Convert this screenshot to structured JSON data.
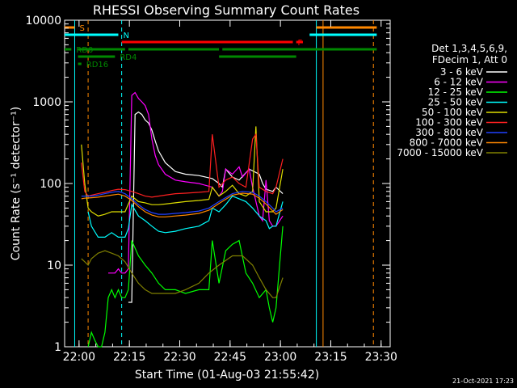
{
  "chart_data": {
    "type": "line",
    "title": "RHESSI Observing Summary Count Rates",
    "xlabel": "Start Time (01-Aug-03 21:55:42)",
    "ylabel": "Count Rate (s⁻¹ detector⁻¹)",
    "y_scale": "log",
    "ylim": [
      1,
      10000
    ],
    "x_tick_labels": [
      "22:00",
      "22:15",
      "22:30",
      "22:45",
      "23:00",
      "23:15",
      "23:30"
    ],
    "y_tick_labels": [
      "1",
      "10",
      "100",
      "1000",
      "10000"
    ],
    "x_unit": "minutes since 21:55:42",
    "xlim": [
      0,
      97
    ],
    "legend": {
      "header": [
        "Det 1,3,4,5,6,9,",
        "FDecim 1, Att 0"
      ],
      "position": "right"
    },
    "series": [
      {
        "name": "3 - 6 keV",
        "color": "#ffffff",
        "x": [
          19,
          20,
          21,
          22,
          23,
          24,
          25,
          26,
          27,
          28,
          30,
          33,
          36,
          40,
          44,
          46,
          47,
          48,
          50,
          52,
          55,
          58,
          59,
          60,
          62,
          63,
          65
        ],
        "y": [
          3.5,
          3.5,
          700,
          750,
          700,
          600,
          550,
          450,
          330,
          250,
          180,
          140,
          130,
          125,
          115,
          100,
          90,
          150,
          120,
          110,
          150,
          130,
          100,
          85,
          80,
          90,
          75
        ]
      },
      {
        "name": "6 - 12 keV",
        "color": "#ff00ff",
        "x": [
          13,
          14,
          15,
          16,
          17,
          18,
          19,
          20,
          21,
          22,
          23,
          24,
          25,
          26,
          27,
          28,
          30,
          33,
          36,
          40,
          44,
          46,
          47,
          48,
          50,
          52,
          53,
          55,
          56,
          58,
          59,
          60,
          61,
          62,
          63,
          65
        ],
        "y": [
          8,
          8,
          8,
          9,
          8,
          8,
          9,
          1200,
          1300,
          1100,
          1000,
          900,
          700,
          350,
          220,
          170,
          130,
          110,
          105,
          100,
          90,
          70,
          80,
          150,
          130,
          160,
          120,
          150,
          90,
          40,
          35,
          110,
          35,
          30,
          30,
          40
        ]
      },
      {
        "name": "12 - 25 keV",
        "color": "#00ff00",
        "x": [
          7,
          8,
          9,
          10,
          11,
          12,
          13,
          14,
          15,
          16,
          17,
          18,
          19,
          20,
          22,
          24,
          26,
          28,
          30,
          33,
          36,
          40,
          43,
          44,
          46,
          48,
          50,
          52,
          54,
          56,
          58,
          60,
          61,
          62,
          63,
          65
        ],
        "y": [
          1,
          1.5,
          1.2,
          1,
          1,
          1.5,
          4,
          5,
          4,
          5,
          4,
          4,
          5,
          20,
          13,
          10,
          8,
          6,
          5,
          5,
          4.5,
          5,
          5,
          20,
          6,
          15,
          18,
          20,
          8,
          6,
          4,
          5,
          3,
          2,
          3,
          30
        ]
      },
      {
        "name": "25 - 50 keV",
        "color": "#00ffff",
        "x": [
          7,
          8,
          10,
          12,
          14,
          16,
          18,
          19,
          20,
          22,
          24,
          26,
          28,
          30,
          33,
          36,
          40,
          43,
          44,
          46,
          48,
          50,
          52,
          54,
          56,
          58,
          60,
          61,
          62,
          63,
          65
        ],
        "y": [
          45,
          30,
          22,
          22,
          25,
          22,
          22,
          28,
          55,
          40,
          35,
          30,
          26,
          25,
          26,
          28,
          30,
          35,
          50,
          45,
          55,
          70,
          65,
          60,
          50,
          40,
          35,
          28,
          30,
          30,
          60
        ]
      },
      {
        "name": "50 - 100 keV",
        "color": "#dddd00",
        "x": [
          5,
          6,
          7,
          8,
          10,
          12,
          14,
          16,
          18,
          20,
          22,
          24,
          26,
          28,
          30,
          33,
          36,
          40,
          43,
          44,
          46,
          48,
          50,
          52,
          54,
          56,
          57,
          58,
          60,
          62,
          63,
          65
        ],
        "y": [
          300,
          100,
          50,
          45,
          40,
          42,
          45,
          45,
          45,
          70,
          60,
          58,
          55,
          55,
          56,
          58,
          60,
          62,
          64,
          90,
          70,
          80,
          95,
          75,
          70,
          80,
          500,
          60,
          45,
          45,
          50,
          150
        ]
      },
      {
        "name": "100 - 300 keV",
        "color": "#ff2020",
        "x": [
          5,
          6,
          7,
          8,
          10,
          12,
          14,
          16,
          18,
          20,
          22,
          24,
          26,
          28,
          30,
          33,
          36,
          40,
          43,
          44,
          46,
          48,
          50,
          52,
          54,
          56,
          57,
          58,
          60,
          62,
          63,
          65
        ],
        "y": [
          180,
          80,
          70,
          72,
          75,
          78,
          82,
          85,
          84,
          80,
          75,
          70,
          68,
          70,
          72,
          75,
          76,
          78,
          80,
          400,
          90,
          110,
          120,
          100,
          90,
          350,
          400,
          90,
          80,
          75,
          90,
          200
        ]
      },
      {
        "name": "300 - 800 keV",
        "color": "#2040ff",
        "x": [
          5,
          6,
          8,
          10,
          12,
          14,
          16,
          18,
          20,
          22,
          24,
          26,
          28,
          30,
          33,
          36,
          40,
          43,
          46,
          50,
          53,
          56,
          58,
          60,
          62,
          63,
          65
        ],
        "y": [
          70,
          70,
          70,
          72,
          75,
          78,
          80,
          75,
          65,
          55,
          48,
          44,
          42,
          42,
          43,
          44,
          46,
          50,
          60,
          75,
          80,
          78,
          70,
          60,
          50,
          45,
          50
        ]
      },
      {
        "name": "800 - 7000 keV",
        "color": "#ff8800",
        "x": [
          5,
          6,
          8,
          10,
          12,
          14,
          16,
          18,
          20,
          22,
          24,
          26,
          28,
          30,
          33,
          36,
          40,
          43,
          46,
          50,
          53,
          56,
          58,
          60,
          62,
          63,
          65
        ],
        "y": [
          65,
          66,
          67,
          68,
          70,
          72,
          74,
          70,
          62,
          52,
          45,
          41,
          39,
          39,
          40,
          41,
          43,
          47,
          57,
          72,
          76,
          74,
          66,
          56,
          46,
          42,
          48
        ]
      },
      {
        "name": "7000 - 15000 keV",
        "color": "#808000",
        "x": [
          5,
          6,
          7,
          8,
          10,
          12,
          14,
          16,
          18,
          20,
          22,
          24,
          26,
          28,
          30,
          33,
          36,
          40,
          43,
          46,
          50,
          53,
          56,
          58,
          60,
          62,
          63,
          65
        ],
        "y": [
          12,
          11,
          10,
          12,
          14,
          15,
          14,
          13,
          11,
          8,
          6,
          5,
          4.5,
          4.5,
          4.5,
          4.5,
          5,
          6,
          8,
          10,
          13,
          13,
          10,
          7,
          5,
          4,
          4,
          7
        ]
      }
    ],
    "top_bars": [
      {
        "label": "S",
        "color": "#ff8800",
        "row": 0,
        "segments": [
          [
            0,
            3
          ],
          [
            75,
            93
          ]
        ]
      },
      {
        "label": "N",
        "color": "#00ffff",
        "row": 1,
        "segments": [
          [
            0,
            16
          ],
          [
            73,
            93
          ]
        ]
      },
      {
        "label": "F",
        "color": "#ff0000",
        "row": 2,
        "segments": [
          [
            17,
            68
          ],
          [
            69,
            71
          ]
        ]
      },
      {
        "label": "RD0",
        "color": "#008800",
        "row": 3,
        "segments": [
          [
            0,
            2
          ],
          [
            4,
            18
          ],
          [
            19,
            46
          ],
          [
            47,
            93
          ]
        ]
      },
      {
        "label": "RD4",
        "color": "#008800",
        "row": 4,
        "segments": [
          [
            4,
            15
          ],
          [
            46,
            69
          ]
        ]
      },
      {
        "label": "RD16",
        "color": "#008800",
        "row": 5,
        "segments": [
          [
            4,
            5
          ]
        ]
      }
    ],
    "vlines": [
      {
        "x": 3,
        "color": "#00ffff"
      },
      {
        "x": 7,
        "color": "#ff8800",
        "dashed": true
      },
      {
        "x": 17,
        "color": "#00ffff",
        "dashed": true
      },
      {
        "x": 75,
        "color": "#00ffff"
      },
      {
        "x": 77,
        "color": "#ff8800"
      },
      {
        "x": 92,
        "color": "#ff8800",
        "dashed": true
      }
    ]
  },
  "footer": {
    "timestamp": "21-Oct-2021 17:23"
  }
}
